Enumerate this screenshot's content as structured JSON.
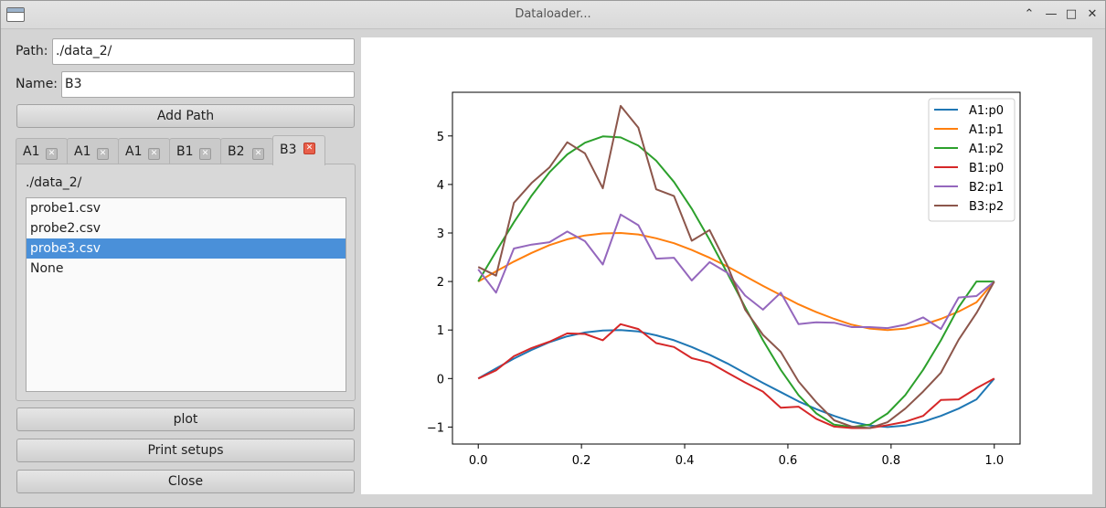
{
  "window": {
    "title": "Dataloader..."
  },
  "form": {
    "path_label": "Path:",
    "path_value": "./data_2/",
    "name_label": "Name:",
    "name_value": "B3",
    "add_path_label": "Add Path"
  },
  "tabs": [
    {
      "label": "A1",
      "active": false
    },
    {
      "label": "A1",
      "active": false
    },
    {
      "label": "A1",
      "active": false
    },
    {
      "label": "B1",
      "active": false
    },
    {
      "label": "B2",
      "active": false
    },
    {
      "label": "B3",
      "active": true
    }
  ],
  "pane": {
    "path": "./data_2/",
    "files": [
      {
        "label": "probe1.csv",
        "selected": false
      },
      {
        "label": "probe2.csv",
        "selected": false
      },
      {
        "label": "probe3.csv",
        "selected": true
      },
      {
        "label": "None",
        "selected": false
      }
    ]
  },
  "buttons": {
    "plot": "plot",
    "print_setups": "Print setups",
    "close": "Close"
  },
  "chart_data": {
    "type": "line",
    "xlim": [
      -0.05,
      1.05
    ],
    "ylim": [
      -1.35,
      5.9
    ],
    "xticks": [
      0.0,
      0.2,
      0.4,
      0.6,
      0.8,
      1.0
    ],
    "xtick_labels": [
      "0.0",
      "0.2",
      "0.4",
      "0.6",
      "0.8",
      "1.0"
    ],
    "yticks": [
      -1,
      0,
      1,
      2,
      3,
      4,
      5
    ],
    "ytick_labels": [
      "−1",
      "0",
      "1",
      "2",
      "3",
      "4",
      "5"
    ],
    "grid": false,
    "legend_position": "top-right",
    "x": [
      0.0,
      0.0345,
      0.069,
      0.1034,
      0.1379,
      0.1724,
      0.2069,
      0.2414,
      0.2759,
      0.3103,
      0.3448,
      0.3793,
      0.4138,
      0.4483,
      0.4828,
      0.5172,
      0.5517,
      0.5862,
      0.6207,
      0.6552,
      0.6897,
      0.7241,
      0.7586,
      0.7931,
      0.8276,
      0.8621,
      0.8966,
      0.931,
      0.9655,
      1.0
    ],
    "series": [
      {
        "name": "A1:p0",
        "color": "#1f77b4",
        "values": [
          0.0,
          0.21,
          0.41,
          0.59,
          0.75,
          0.87,
          0.95,
          0.99,
          1.0,
          0.97,
          0.89,
          0.79,
          0.65,
          0.49,
          0.31,
          0.11,
          -0.09,
          -0.28,
          -0.47,
          -0.63,
          -0.77,
          -0.89,
          -0.97,
          -1.0,
          -0.97,
          -0.89,
          -0.77,
          -0.62,
          -0.43,
          0.0
        ]
      },
      {
        "name": "A1:p1",
        "color": "#ff7f0e",
        "values": [
          2.0,
          2.21,
          2.41,
          2.59,
          2.75,
          2.87,
          2.95,
          2.99,
          3.0,
          2.97,
          2.89,
          2.79,
          2.65,
          2.49,
          2.31,
          2.11,
          1.91,
          1.72,
          1.53,
          1.37,
          1.23,
          1.11,
          1.03,
          1.0,
          1.03,
          1.11,
          1.23,
          1.38,
          1.57,
          2.0
        ]
      },
      {
        "name": "A1:p2",
        "color": "#2ca02c",
        "values": [
          2.0,
          2.62,
          3.22,
          3.77,
          4.25,
          4.62,
          4.86,
          4.99,
          4.97,
          4.8,
          4.49,
          4.05,
          3.5,
          2.86,
          2.17,
          1.47,
          0.79,
          0.18,
          -0.34,
          -0.72,
          -0.95,
          -1.0,
          -0.95,
          -0.72,
          -0.34,
          0.18,
          0.79,
          1.47,
          2.0,
          2.0
        ]
      },
      {
        "name": "B1:p0",
        "color": "#d62728",
        "values": [
          0.0,
          0.17,
          0.46,
          0.63,
          0.76,
          0.93,
          0.92,
          0.79,
          1.12,
          1.02,
          0.73,
          0.65,
          0.42,
          0.33,
          0.12,
          -0.08,
          -0.27,
          -0.6,
          -0.58,
          -0.83,
          -0.99,
          -1.02,
          -1.02,
          -0.96,
          -0.89,
          -0.77,
          -0.44,
          -0.43,
          -0.2,
          0.0
        ]
      },
      {
        "name": "B2:p1",
        "color": "#9467bd",
        "values": [
          2.25,
          1.77,
          2.68,
          2.76,
          2.81,
          3.03,
          2.83,
          2.35,
          3.38,
          3.16,
          2.47,
          2.49,
          2.02,
          2.4,
          2.18,
          1.71,
          1.42,
          1.77,
          1.12,
          1.16,
          1.15,
          1.06,
          1.06,
          1.04,
          1.11,
          1.26,
          1.02,
          1.67,
          1.7,
          2.0
        ]
      },
      {
        "name": "B3:p2",
        "color": "#8c564b",
        "values": [
          2.3,
          2.12,
          3.62,
          4.03,
          4.35,
          4.87,
          4.64,
          3.92,
          5.62,
          5.17,
          3.9,
          3.76,
          2.84,
          3.06,
          2.33,
          1.42,
          0.9,
          0.55,
          -0.06,
          -0.49,
          -0.86,
          -0.99,
          -1.02,
          -0.9,
          -0.62,
          -0.27,
          0.12,
          0.8,
          1.35,
          2.0
        ]
      }
    ]
  }
}
